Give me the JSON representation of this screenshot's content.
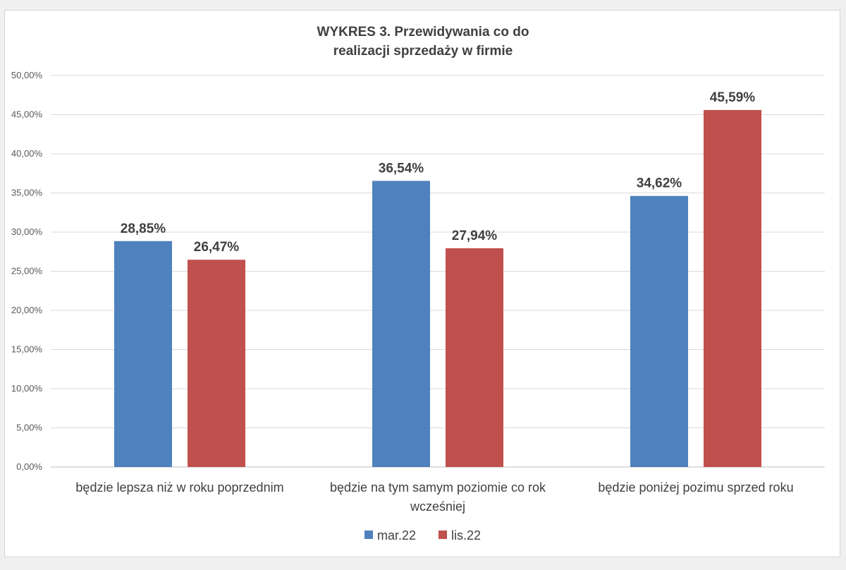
{
  "chart_data": {
    "type": "bar",
    "title_lines": [
      "WYKRES 3. Przewidywania co do",
      "realizacji sprzedaży w firmie"
    ],
    "categories": [
      [
        "będzie lepsza niż w roku poprzednim"
      ],
      [
        "będzie na tym samym poziomie co rok",
        "wcześniej"
      ],
      [
        "będzie poniżej pozimu sprzed roku"
      ]
    ],
    "series": [
      {
        "name": "mar.22",
        "color": "#4f81bd",
        "values": [
          28.85,
          36.54,
          34.62
        ],
        "labels": [
          "28,85%",
          "36,54%",
          "34,62%"
        ]
      },
      {
        "name": "lis.22",
        "color": "#c0504d",
        "values": [
          26.47,
          27.94,
          45.59
        ],
        "labels": [
          "26,47%",
          "27,94%",
          "45,59%"
        ]
      }
    ],
    "yticks": [
      "0,00%",
      "5,00%",
      "10,00%",
      "15,00%",
      "20,00%",
      "25,00%",
      "30,00%",
      "35,00%",
      "40,00%",
      "45,00%",
      "50,00%"
    ],
    "ylim": [
      0,
      50
    ],
    "grid": true,
    "legend_position": "bottom",
    "gridline_color": "#d9d9d9"
  }
}
